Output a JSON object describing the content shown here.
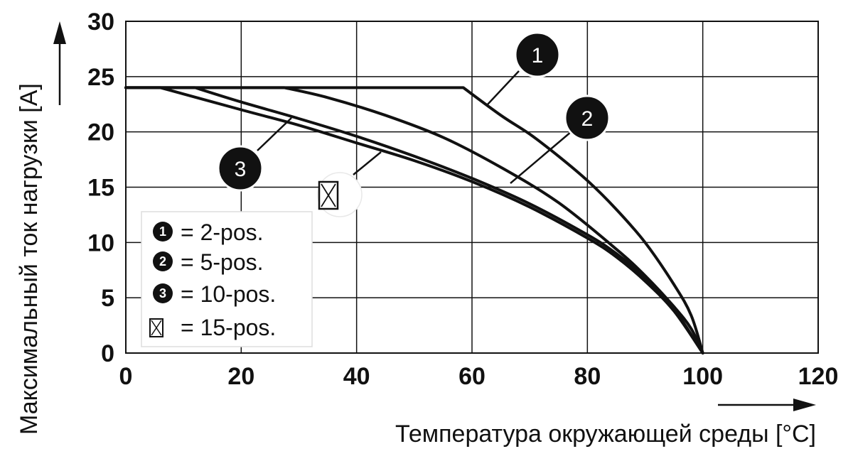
{
  "chart_data": {
    "type": "line",
    "xlabel": "Температура окружающей среды [°C]",
    "ylabel": "Максимальный ток нагрузки [A]",
    "xlim": [
      0,
      120
    ],
    "ylim": [
      0,
      30
    ],
    "x_ticks": [
      "0",
      "20",
      "40",
      "60",
      "80",
      "100",
      "120"
    ],
    "y_ticks": [
      "0",
      "5",
      "10",
      "15",
      "20",
      "25",
      "30"
    ],
    "grid": true,
    "legend_position": "bottom-left",
    "series": [
      {
        "marker": "1",
        "legend_label": "= 2-pos.",
        "x": [
          0,
          58.5,
          65,
          70,
          75,
          80,
          85,
          90,
          95,
          98,
          100
        ],
        "y": [
          24,
          24,
          21.5,
          19.8,
          17.8,
          15.6,
          13,
          10,
          6.2,
          3.4,
          0
        ]
      },
      {
        "marker": "2",
        "legend_label": "= 5-pos.",
        "x": [
          0,
          27.5,
          35,
          45,
          55,
          65,
          75,
          85,
          90,
          95,
          98,
          100
        ],
        "y": [
          24,
          24,
          23.1,
          21.5,
          19.5,
          16.8,
          13.6,
          9.4,
          7,
          4.2,
          2.2,
          0
        ]
      },
      {
        "marker": "3",
        "legend_label": "= 10-pos.",
        "x": [
          0,
          6,
          20,
          30,
          40,
          50,
          60,
          70,
          80,
          85,
          90,
          95,
          100
        ],
        "y": [
          24,
          24,
          22,
          20.6,
          19,
          17.4,
          15.5,
          13.2,
          10.4,
          8.7,
          6.5,
          3.8,
          0
        ]
      },
      {
        "marker": "☒",
        "legend_label": "= 15-pos.",
        "x": [
          0,
          12,
          20,
          30,
          40,
          50,
          60,
          70,
          80,
          85,
          90,
          95,
          100
        ],
        "y": [
          24,
          24,
          22.7,
          21.2,
          19.6,
          17.8,
          15.8,
          13.5,
          10.7,
          9,
          6.8,
          4,
          0
        ]
      }
    ],
    "callouts": [
      {
        "marker": "1"
      },
      {
        "marker": "2"
      },
      {
        "marker": "3"
      },
      {
        "marker": "☒"
      }
    ]
  }
}
